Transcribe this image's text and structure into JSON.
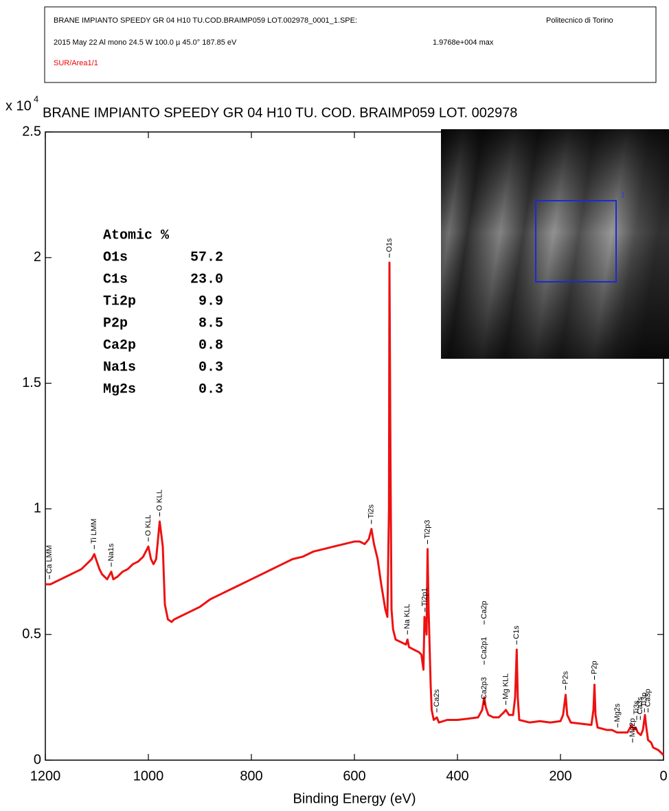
{
  "header": {
    "line1": "BRANE IMPIANTO SPEEDY GR 04 H10 TU.COD.BRAIMP059 LOT.002978_0001_1.SPE:",
    "institution": "Politecnico di Torino",
    "line2": "2015 May 22  Al mono  24.5 W  100.0 µ  45.0°  187.85 eV",
    "max": "1.9768e+004 max",
    "line3": "SUR/Area1/1"
  },
  "chart_data": {
    "type": "line",
    "title": "BRANE IMPIANTO  SPEEDY GR 04  H10  TU.  COD.  BRAIMP059  LOT.  002978",
    "x_label": "Binding Energy (eV)",
    "y_multiplier": "x 10",
    "y_multiplier_exp": "4",
    "color": "#ee1111",
    "xlim": [
      1200,
      0
    ],
    "xticks": [
      1200,
      1000,
      800,
      600,
      400,
      200,
      0
    ],
    "ylim": [
      0,
      2.5
    ],
    "yticks": [
      0,
      0.5,
      1,
      1.5,
      2,
      2.5
    ],
    "grid": false,
    "x": [
      1200,
      1190,
      1180,
      1170,
      1160,
      1150,
      1140,
      1130,
      1120,
      1110,
      1105,
      1100,
      1095,
      1090,
      1080,
      1072,
      1068,
      1060,
      1050,
      1040,
      1030,
      1020,
      1010,
      1000,
      995,
      990,
      985,
      978,
      972,
      968,
      962,
      955,
      950,
      940,
      920,
      900,
      880,
      860,
      840,
      820,
      800,
      780,
      760,
      740,
      720,
      700,
      680,
      660,
      640,
      620,
      600,
      590,
      580,
      572,
      567,
      562,
      555,
      548,
      540,
      536,
      533,
      532,
      530,
      528,
      525,
      520,
      510,
      500,
      497,
      494,
      485,
      475,
      470,
      466,
      464,
      462,
      460,
      458,
      456,
      454,
      452,
      450,
      446,
      440,
      436,
      420,
      400,
      380,
      360,
      352,
      348,
      345,
      340,
      330,
      320,
      310,
      306,
      300,
      292,
      288,
      285,
      283,
      280,
      260,
      240,
      220,
      200,
      195,
      190,
      187,
      180,
      160,
      140,
      136,
      134,
      132,
      128,
      110,
      100,
      90,
      80,
      70,
      62,
      58,
      54,
      50,
      44,
      40,
      36,
      34,
      30,
      24,
      20,
      10,
      5,
      0
    ],
    "values": [
      0.7,
      0.7,
      0.71,
      0.72,
      0.73,
      0.74,
      0.75,
      0.76,
      0.78,
      0.8,
      0.82,
      0.79,
      0.76,
      0.74,
      0.72,
      0.75,
      0.72,
      0.73,
      0.75,
      0.76,
      0.78,
      0.79,
      0.81,
      0.85,
      0.8,
      0.78,
      0.8,
      0.95,
      0.85,
      0.62,
      0.56,
      0.55,
      0.56,
      0.57,
      0.59,
      0.61,
      0.64,
      0.66,
      0.68,
      0.7,
      0.72,
      0.74,
      0.76,
      0.78,
      0.8,
      0.81,
      0.83,
      0.84,
      0.85,
      0.86,
      0.87,
      0.87,
      0.86,
      0.88,
      0.92,
      0.86,
      0.8,
      0.7,
      0.6,
      0.57,
      1.0,
      1.98,
      1.2,
      0.6,
      0.52,
      0.48,
      0.47,
      0.46,
      0.48,
      0.45,
      0.44,
      0.43,
      0.42,
      0.36,
      0.57,
      0.55,
      0.5,
      0.84,
      0.6,
      0.45,
      0.3,
      0.2,
      0.16,
      0.17,
      0.15,
      0.16,
      0.16,
      0.165,
      0.17,
      0.2,
      0.25,
      0.21,
      0.18,
      0.17,
      0.17,
      0.19,
      0.2,
      0.18,
      0.18,
      0.25,
      0.44,
      0.25,
      0.16,
      0.15,
      0.155,
      0.15,
      0.155,
      0.18,
      0.26,
      0.18,
      0.15,
      0.145,
      0.14,
      0.2,
      0.3,
      0.18,
      0.13,
      0.12,
      0.12,
      0.11,
      0.11,
      0.11,
      0.14,
      0.12,
      0.13,
      0.11,
      0.1,
      0.12,
      0.18,
      0.14,
      0.08,
      0.07,
      0.05,
      0.04,
      0.03,
      0.02
    ],
    "peaks": [
      {
        "label": "Ca LMM",
        "x": 1192,
        "y": 0.72
      },
      {
        "label": "Ti LMM",
        "x": 1105,
        "y": 0.84
      },
      {
        "label": "Na1s",
        "x": 1072,
        "y": 0.77
      },
      {
        "label": "O KLL",
        "x": 1000,
        "y": 0.87
      },
      {
        "label": "O KLL",
        "x": 978,
        "y": 0.97
      },
      {
        "label": "Ti2s",
        "x": 567,
        "y": 0.94
      },
      {
        "label": "O1s",
        "x": 532,
        "y": 2.0
      },
      {
        "label": "Na KLL",
        "x": 497,
        "y": 0.5
      },
      {
        "label": "Ti2p1",
        "x": 463,
        "y": 0.59
      },
      {
        "label": "Ti2p3",
        "x": 458,
        "y": 0.86
      },
      {
        "label": "Ca2s",
        "x": 440,
        "y": 0.19
      },
      {
        "label": "Ca2p3",
        "x": 348,
        "y": 0.22
      },
      {
        "label": "Ca2p1",
        "x": 348,
        "y": 0.38
      },
      {
        "label": "Ca2p",
        "x": 348,
        "y": 0.54
      },
      {
        "label": "Mg KLL",
        "x": 306,
        "y": 0.22
      },
      {
        "label": "C1s",
        "x": 285,
        "y": 0.46
      },
      {
        "label": "P2s",
        "x": 190,
        "y": 0.28
      },
      {
        "label": "P2p",
        "x": 134,
        "y": 0.32
      },
      {
        "label": "Mg2s",
        "x": 89,
        "y": 0.13
      },
      {
        "label": "Mg2p",
        "x": 60,
        "y": 0.07
      },
      {
        "label": "Ti3s",
        "x": 52,
        "y": 0.16
      },
      {
        "label": "Ca3s",
        "x": 45,
        "y": 0.16
      },
      {
        "label": "Ti3p",
        "x": 37,
        "y": 0.19
      },
      {
        "label": "Ca3p",
        "x": 30,
        "y": 0.19
      }
    ],
    "atomic_table": {
      "title": "Atomic %",
      "rows": [
        [
          "O1s",
          "57.2"
        ],
        [
          "C1s",
          "23.0"
        ],
        [
          "Ti2p",
          "9.9"
        ],
        [
          "P2p",
          "8.5"
        ],
        [
          "Ca2p",
          "0.8"
        ],
        [
          "Na1s",
          "0.3"
        ],
        [
          "Mg2s",
          "0.3"
        ]
      ]
    },
    "inset_label": "1"
  }
}
